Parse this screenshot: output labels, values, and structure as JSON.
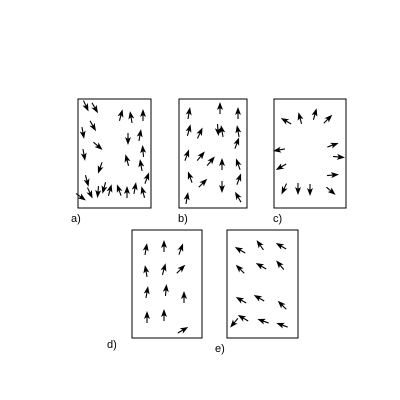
{
  "panels": [
    {
      "id": "a",
      "label": "a)",
      "arrows": [
        [
          86,
          106,
          155
        ],
        [
          95,
          108,
          150
        ],
        [
          93,
          126,
          150
        ],
        [
          83,
          133,
          170
        ],
        [
          98,
          146,
          130
        ],
        [
          84,
          155,
          170
        ],
        [
          100,
          168,
          200
        ],
        [
          87,
          181,
          165
        ],
        [
          90,
          193,
          155
        ],
        [
          81,
          197,
          125
        ],
        [
          98,
          192,
          185
        ],
        [
          104,
          188,
          195
        ],
        [
          110,
          190,
          15
        ],
        [
          119,
          190,
          340
        ],
        [
          127,
          192,
          0
        ],
        [
          135,
          188,
          10
        ],
        [
          143,
          192,
          345
        ],
        [
          147,
          178,
          20
        ],
        [
          141,
          165,
          350
        ],
        [
          143,
          151,
          355
        ],
        [
          140,
          135,
          10
        ],
        [
          143,
          115,
          0
        ],
        [
          131,
          117,
          350
        ],
        [
          121,
          115,
          15
        ],
        [
          128,
          139,
          180
        ],
        [
          127,
          160,
          345
        ]
      ]
    },
    {
      "id": "b",
      "label": "b)",
      "arrows": [
        [
          189,
          113,
          10
        ],
        [
          189,
          130,
          15
        ],
        [
          200,
          133,
          25
        ],
        [
          218,
          130,
          175
        ],
        [
          222,
          131,
          350
        ],
        [
          220,
          108,
          0
        ],
        [
          238,
          113,
          0
        ],
        [
          238,
          131,
          350
        ],
        [
          237,
          143,
          20
        ],
        [
          187,
          155,
          20
        ],
        [
          201,
          156,
          40
        ],
        [
          211,
          161,
          40
        ],
        [
          222,
          164,
          0
        ],
        [
          238,
          164,
          340
        ],
        [
          239,
          179,
          20
        ],
        [
          238,
          197,
          330
        ],
        [
          190,
          177,
          340
        ],
        [
          203,
          183,
          45
        ],
        [
          222,
          187,
          180
        ],
        [
          187,
          198,
          10
        ]
      ]
    },
    {
      "id": "c",
      "label": "c)",
      "arrows": [
        [
          286,
          121,
          300
        ],
        [
          300,
          118,
          345
        ],
        [
          315,
          114,
          15
        ],
        [
          328,
          119,
          45
        ],
        [
          333,
          145,
          70
        ],
        [
          339,
          157,
          95
        ],
        [
          333,
          175,
          85
        ],
        [
          331,
          191,
          130
        ],
        [
          310,
          190,
          180
        ],
        [
          298,
          189,
          180
        ],
        [
          284,
          189,
          205
        ],
        [
          279,
          150,
          260
        ],
        [
          281,
          167,
          240
        ]
      ]
    },
    {
      "id": "d",
      "label": "d)",
      "arrows": [
        [
          146,
          249,
          10
        ],
        [
          164,
          246,
          0
        ],
        [
          181,
          249,
          20
        ],
        [
          146,
          271,
          350
        ],
        [
          164,
          269,
          15
        ],
        [
          181,
          269,
          45
        ],
        [
          147,
          292,
          10
        ],
        [
          166,
          290,
          5
        ],
        [
          184,
          297,
          0
        ],
        [
          147,
          317,
          0
        ],
        [
          164,
          315,
          0
        ],
        [
          183,
          330,
          60
        ]
      ]
    },
    {
      "id": "e",
      "label": "e)",
      "arrows": [
        [
          240,
          250,
          300
        ],
        [
          260,
          245,
          325
        ],
        [
          281,
          246,
          300
        ],
        [
          240,
          269,
          315
        ],
        [
          261,
          266,
          300
        ],
        [
          280,
          265,
          320
        ],
        [
          241,
          300,
          300
        ],
        [
          259,
          298,
          300
        ],
        [
          282,
          305,
          315
        ],
        [
          243,
          318,
          300
        ],
        [
          263,
          321,
          290
        ],
        [
          282,
          325,
          290
        ],
        [
          234,
          323,
          220
        ]
      ]
    }
  ]
}
